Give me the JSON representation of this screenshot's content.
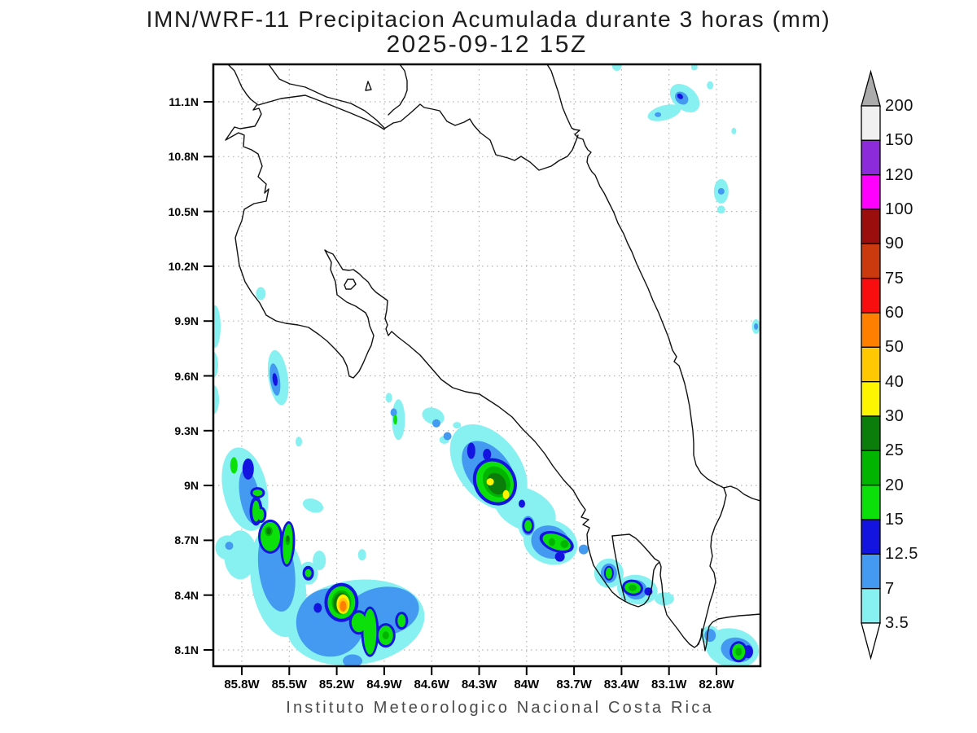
{
  "title": {
    "line1": "IMN/WRF-11 Precipitacion Acumulada durante 3 horas (mm)",
    "line2": "2025-09-12 15Z"
  },
  "caption": "Instituto Meteorologico Nacional Costa Rica",
  "axes": {
    "y_labels": [
      "11.1N",
      "10.8N",
      "10.5N",
      "10.2N",
      "9.9N",
      "9.6N",
      "9.3N",
      "9N",
      "8.7N",
      "8.4N",
      "8.1N"
    ],
    "x_labels": [
      "85.8W",
      "85.5W",
      "85.2W",
      "84.9W",
      "84.6W",
      "84.3W",
      "84W",
      "83.7W",
      "83.4W",
      "83.1W",
      "82.8W"
    ]
  },
  "colorbar": {
    "labels_top_to_bottom": [
      "200",
      "150",
      "120",
      "100",
      "90",
      "75",
      "60",
      "50",
      "40",
      "30",
      "25",
      "20",
      "15",
      "12.5",
      "7",
      "3.5"
    ],
    "over_color": "#ababab",
    "under_color": "#ffffff"
  },
  "palette": {
    "3.5": "#87f0f0",
    "7": "#4499f0",
    "12.5": "#1414e0",
    "15": "#0be00b",
    "20": "#00b400",
    "25": "#0a7d0a",
    "30": "#fdf500",
    "40": "#ffc800",
    "50": "#ff8000",
    "60": "#f80e0e",
    "75": "#cb3a0f",
    "90": "#9a0e0e",
    "100": "#ff00ff",
    "120": "#8c2bd9",
    "150": "#f0f0f0",
    "200": "#ababab"
  },
  "chart_data": {
    "type": "heatmap",
    "title": "IMN/WRF-11 Precipitacion Acumulada durante 3 horas (mm)",
    "subtitle": "2025-09-12 15Z",
    "unit": "mm",
    "extent": {
      "lon_min": -86.0,
      "lon_max": -82.52,
      "lat_min": 8.0,
      "lat_max": 11.29
    },
    "lon_ticks": [
      -85.8,
      -85.5,
      -85.2,
      -84.9,
      -84.6,
      -84.3,
      -84.0,
      -83.7,
      -83.4,
      -83.1,
      -82.8
    ],
    "lat_ticks": [
      11.1,
      10.8,
      10.5,
      10.2,
      9.9,
      9.6,
      9.3,
      9.0,
      8.7,
      8.4,
      8.1
    ],
    "levels_mm": [
      3.5,
      7,
      12.5,
      15,
      20,
      25,
      30,
      40,
      50,
      60,
      75,
      90,
      100,
      120,
      150,
      200
    ],
    "grid": "dotted",
    "legend_position": "right",
    "max_value_band_mm": "50-60",
    "max_value_location": {
      "lon": -85.16,
      "lat": 8.34
    },
    "cells_key": [
      "lon",
      "lat",
      "rx_px",
      "ry_px",
      "rot_deg",
      "mm"
    ],
    "cells": [
      [
        -83.0,
        11.12,
        21,
        14,
        42,
        3.5
      ],
      [
        -83.13,
        11.04,
        21,
        9,
        -15,
        3.5
      ],
      [
        -83.43,
        11.3,
        6,
        7,
        0,
        3.5
      ],
      [
        -82.94,
        11.29,
        4,
        4,
        0,
        3.5
      ],
      [
        -82.84,
        11.19,
        4,
        5,
        0,
        3.5
      ],
      [
        -82.69,
        10.94,
        3,
        4,
        0,
        3.5
      ],
      [
        -82.77,
        10.61,
        9,
        15,
        0,
        3.5
      ],
      [
        -82.77,
        10.51,
        5,
        5,
        0,
        3.5
      ],
      [
        -82.55,
        9.87,
        5,
        9,
        0,
        3.5
      ],
      [
        -85.68,
        10.05,
        6,
        8,
        0,
        3.5
      ],
      [
        -85.57,
        9.59,
        12,
        34,
        -8,
        3.5
      ],
      [
        -85.97,
        9.87,
        7,
        26,
        0,
        3.5
      ],
      [
        -85.98,
        9.66,
        6,
        16,
        0,
        3.5
      ],
      [
        -85.98,
        9.47,
        7,
        18,
        0,
        3.5
      ],
      [
        -85.78,
        8.98,
        27,
        52,
        -12,
        3.5
      ],
      [
        -85.57,
        8.47,
        33,
        68,
        -10,
        3.5
      ],
      [
        -85.81,
        8.62,
        20,
        30,
        0,
        3.5
      ],
      [
        -85.89,
        8.66,
        15,
        15,
        0,
        3.5
      ],
      [
        -85.44,
        9.24,
        4,
        6,
        0,
        3.5
      ],
      [
        -85.35,
        8.89,
        13,
        8,
        20,
        3.5
      ],
      [
        -85.31,
        8.59,
        8,
        12,
        0,
        3.5
      ],
      [
        -85.38,
        8.52,
        12,
        14,
        0,
        3.5
      ],
      [
        -85.08,
        8.25,
        85,
        52,
        -8,
        3.5
      ],
      [
        -85.04,
        8.62,
        5,
        7,
        0,
        3.5
      ],
      [
        -84.87,
        9.48,
        4,
        6,
        0,
        3.5
      ],
      [
        -84.81,
        9.36,
        8,
        25,
        0,
        3.5
      ],
      [
        -84.59,
        9.38,
        14,
        10,
        20,
        3.5
      ],
      [
        -84.52,
        9.25,
        6,
        5,
        0,
        3.5
      ],
      [
        -84.44,
        9.33,
        5,
        4,
        0,
        3.5
      ],
      [
        -84.26,
        9.25,
        5,
        4,
        0,
        3.5
      ],
      [
        -84.24,
        9.1,
        38,
        60,
        -38,
        3.5
      ],
      [
        -84.01,
        8.87,
        40,
        25,
        25,
        3.5
      ],
      [
        -83.99,
        8.78,
        12,
        16,
        0,
        3.5
      ],
      [
        -83.85,
        8.69,
        34,
        27,
        20,
        3.5
      ],
      [
        -83.48,
        8.52,
        18,
        18,
        0,
        3.5
      ],
      [
        -83.3,
        8.43,
        25,
        18,
        10,
        3.5
      ],
      [
        -83.13,
        8.38,
        12,
        8,
        0,
        3.5
      ],
      [
        -82.7,
        8.11,
        33,
        24,
        12,
        3.5
      ],
      [
        -82.84,
        8.18,
        11,
        12,
        0,
        3.5
      ],
      [
        -83.02,
        11.12,
        9,
        7,
        42,
        7
      ],
      [
        -83.17,
        11.03,
        4,
        3,
        0,
        7
      ],
      [
        -82.77,
        10.61,
        4,
        4,
        0,
        7
      ],
      [
        -82.55,
        9.87,
        2.5,
        4,
        0,
        7
      ],
      [
        -85.59,
        9.58,
        6,
        20,
        -8,
        7
      ],
      [
        -85.75,
        8.94,
        12,
        34,
        -10,
        7
      ],
      [
        -85.58,
        8.54,
        22,
        52,
        -8,
        7
      ],
      [
        -85.88,
        8.67,
        5,
        5,
        0,
        7
      ],
      [
        -85.24,
        8.25,
        42,
        42,
        0,
        7
      ],
      [
        -84.91,
        8.31,
        45,
        30,
        -10,
        7
      ],
      [
        -85.1,
        8.04,
        12,
        8,
        0,
        7
      ],
      [
        -84.84,
        9.4,
        4,
        5,
        0,
        7
      ],
      [
        -84.57,
        9.34,
        5,
        5,
        0,
        7
      ],
      [
        -84.5,
        9.27,
        5,
        5,
        0,
        7
      ],
      [
        -84.24,
        9.08,
        26,
        42,
        -38,
        7
      ],
      [
        -83.99,
        8.78,
        8,
        12,
        0,
        7
      ],
      [
        -83.85,
        8.69,
        24,
        20,
        20,
        7
      ],
      [
        -83.64,
        8.65,
        6,
        6,
        0,
        7
      ],
      [
        -83.48,
        8.52,
        10,
        12,
        0,
        7
      ],
      [
        -83.31,
        8.43,
        14,
        12,
        10,
        7
      ],
      [
        -82.67,
        8.1,
        20,
        15,
        12,
        7
      ],
      [
        -82.84,
        8.18,
        7,
        8,
        0,
        7
      ],
      [
        -83.03,
        11.13,
        4,
        3,
        42,
        12.5
      ],
      [
        -85.59,
        9.58,
        3,
        8,
        -8,
        12.5
      ],
      [
        -85.76,
        9.09,
        7,
        13,
        0,
        12.5
      ],
      [
        -85.71,
        8.86,
        8,
        18,
        0,
        12.5
      ],
      [
        -85.7,
        8.96,
        9,
        7,
        0,
        12.5
      ],
      [
        -85.68,
        8.84,
        7,
        10,
        0,
        12.5
      ],
      [
        -85.62,
        8.72,
        15,
        21,
        0,
        12.5
      ],
      [
        -85.51,
        8.68,
        9,
        28,
        3,
        12.5
      ],
      [
        -85.38,
        8.52,
        7,
        9,
        0,
        12.5
      ],
      [
        -85.17,
        8.36,
        21,
        24,
        0,
        12.5
      ],
      [
        -85.32,
        8.33,
        5,
        6,
        0,
        12.5
      ],
      [
        -85.06,
        8.25,
        12,
        15,
        0,
        12.5
      ],
      [
        -84.99,
        8.2,
        11,
        31,
        0,
        12.5
      ],
      [
        -84.89,
        8.18,
        12,
        15,
        0,
        12.5
      ],
      [
        -84.79,
        8.26,
        8,
        11,
        0,
        12.5
      ],
      [
        -84.35,
        9.19,
        5,
        10,
        0,
        12.5
      ],
      [
        -84.25,
        9.17,
        5,
        7,
        0,
        12.5
      ],
      [
        -84.2,
        9.02,
        26,
        30,
        -30,
        12.5
      ],
      [
        -84.03,
        8.9,
        4,
        5,
        0,
        12.5
      ],
      [
        -83.99,
        8.78,
        7,
        10,
        0,
        12.5
      ],
      [
        -83.81,
        8.69,
        22,
        12,
        20,
        12.5
      ],
      [
        -83.79,
        8.61,
        6,
        6,
        0,
        12.5
      ],
      [
        -83.48,
        8.52,
        6,
        9,
        0,
        12.5
      ],
      [
        -83.33,
        8.44,
        13,
        10,
        10,
        12.5
      ],
      [
        -83.23,
        8.42,
        5,
        5,
        0,
        12.5
      ],
      [
        -82.66,
        8.09,
        11,
        13,
        0,
        12.5
      ],
      [
        -82.6,
        8.09,
        6,
        8,
        0,
        12.5
      ],
      [
        -85.85,
        9.11,
        4.5,
        10,
        0,
        15
      ],
      [
        -85.71,
        8.86,
        4.5,
        13,
        0,
        15
      ],
      [
        -85.7,
        8.96,
        6,
        4,
        0,
        15
      ],
      [
        -85.68,
        8.84,
        4,
        7,
        0,
        15
      ],
      [
        -85.62,
        8.72,
        12,
        18,
        0,
        15
      ],
      [
        -85.51,
        8.68,
        6,
        25,
        3,
        15
      ],
      [
        -85.38,
        8.52,
        4,
        5,
        0,
        15
      ],
      [
        -85.17,
        8.36,
        17,
        20,
        0,
        15
      ],
      [
        -85.06,
        8.25,
        9,
        12,
        0,
        15
      ],
      [
        -84.99,
        8.2,
        8,
        28,
        0,
        15
      ],
      [
        -84.89,
        8.18,
        9,
        12,
        0,
        15
      ],
      [
        -84.79,
        8.26,
        5,
        8,
        0,
        15
      ],
      [
        -84.83,
        9.36,
        2.5,
        6,
        0,
        15
      ],
      [
        -84.2,
        9.02,
        22,
        26,
        -30,
        15
      ],
      [
        -83.99,
        8.78,
        4.5,
        7,
        0,
        15
      ],
      [
        -83.81,
        8.69,
        18,
        9,
        20,
        15
      ],
      [
        -83.48,
        8.52,
        4,
        7,
        0,
        15
      ],
      [
        -83.33,
        8.44,
        10,
        7,
        10,
        15
      ],
      [
        -82.66,
        8.09,
        8,
        10,
        0,
        15
      ],
      [
        -85.63,
        8.75,
        5,
        6,
        0,
        20
      ],
      [
        -85.51,
        8.7,
        3,
        6,
        0,
        20
      ],
      [
        -85.17,
        8.36,
        12,
        15,
        0,
        20
      ],
      [
        -84.89,
        8.18,
        4,
        5,
        0,
        20
      ],
      [
        -84.19,
        9.02,
        16,
        20,
        -30,
        20
      ],
      [
        -83.84,
        8.69,
        4,
        5,
        0,
        20
      ],
      [
        -83.76,
        8.68,
        5,
        5,
        0,
        20
      ],
      [
        -83.33,
        8.44,
        5,
        4,
        0,
        20
      ],
      [
        -82.66,
        8.09,
        4,
        5,
        0,
        20
      ],
      [
        -84.19,
        9.01,
        11,
        14,
        -30,
        25
      ],
      [
        -85.17,
        8.355,
        10,
        13,
        0,
        25
      ],
      [
        -85.63,
        8.75,
        3,
        4,
        0,
        25
      ],
      [
        -85.51,
        8.71,
        2,
        4,
        0,
        25
      ],
      [
        -85.16,
        8.35,
        8,
        12,
        0,
        30
      ],
      [
        -84.23,
        9.02,
        4.5,
        4.5,
        0,
        30
      ],
      [
        -84.13,
        8.95,
        4,
        5.5,
        0,
        30
      ],
      [
        -85.16,
        8.345,
        6,
        9,
        0,
        40
      ],
      [
        -85.16,
        8.34,
        4,
        6.5,
        0,
        50
      ]
    ]
  },
  "map_geometry": {
    "stroke_color": "#111111",
    "grid_color": "#b4b4b4",
    "coast_paths": [
      "M 280 79 L 288 87 L 293 98 L 297 107 L 303 116 L 308 122 L 312 125 L 316 128 L 311 135 L 318 133 L 321 140 L 316 150 L 313 155 L 295 158 L 288 156 L 277 172 L 293 163 L 300 166 L 299 180 L 309 184 L 317 189 L 322 204 L 317 217 L 327 226 L 325 237 L 330 232 L 327 247 L 312 250 L 300 257 L 297 271 L 292 283 L 289 292 L 294 326 L 301 346 L 309 359 L 319 372 L 327 387 L 339 394 L 351 397 L 366 399 L 379 402 L 392 411 L 402 419 L 412 429 L 421 439 L 426 449 L 429 462 L 434 464 L 441 456 L 446 446 L 452 432 L 456 424 L 459 412 L 454 400 L 452 390 L 449 384 L 437 376 L 426 371 L 414 362 L 412 346 L 406 331 L 407 322 L 399 307 L 402 309 L 409 312 L 421 331 L 429 332 L 434 331 L 441 336 L 446 341 L 452 346 L 457 354 L 462 359 L 469 364 L 476 369 L 475 381 L 473 391 L 476 399 L 474 404 L 477 412 L 481 407 L 489 414 L 502 424 L 516 436 L 529 451 L 542 466 L 556 476 L 572 481 L 589 484 L 612 499 L 629 512 L 642 527 L 657 542 L 669 557 L 679 572 L 692 589 L 704 602 L 712 616 L 719 626 L 714 635 L 723 638 L 716 644 L 724 648 L 721 656 L 722 669 L 725 681 L 729 694 L 737 706 L 746 719 L 752 727 L 759 733 L 767 738 L 775 742 L 784 745 L 791 742 L 796 736 L 799 728 L 801 718 L 802 708 L 803 700 L 806 694 L 810 690 L 812 696 L 811 706 L 813 718 L 814 731 L 816 744 L 819 755 L 825 763 L 832 772 L 840 783 L 847 791 L 853 795 L 858 791 L 861 782 L 862 772 L 863 782 L 865 792 L 866 799 L 868 790 L 869 778 L 871 769 L 875 764 L 882 760 L 893 758 L 908 756 L 922 755 L 934 754",
      "M 752 658 L 773 656 L 781 661 L 790 670 L 798 679 L 804 686 L 809 689",
      "M 752 658 L 754 672 L 757 688 L 760 704 L 763 718 L 766 730 L 768 737",
      "M 330 79 L 343 97 L 356 103 L 375 107 L 401 119 L 431 127 L 448 136 L 462 147 L 472 157",
      "M 317 129 L 345 121 L 375 117 L 401 127 L 431 139 L 450 147 L 464 154 L 472 159",
      "M 491 79 L 497 87 L 500 99 L 500 111 L 497 119 L 491 129 L 483 135 L 477 141",
      "M 472 158 L 483 151 L 492 149 L 505 138 L 516 128 L 521 132 L 531 134 L 540 136 L 549 149 L 559 154 L 570 150 L 577 146 L 582 154 L 590 163 L 602 172 L 609 190 L 624 194 L 632 197 L 640 192 L 651 199 L 662 209 L 677 204 L 687 197 L 697 192 L 703 184 L 707 174 L 710 166",
      "M 672 79 L 677 87 L 681 99 L 686 114 L 691 132 L 696 144 L 702 157 L 705 159 L 712 160 L 706 165 L 710 169 L 716 171 L 719 179 L 722 184 L 726 187 L 722 192 L 721 199 L 724 206 L 727 211 L 731 215 L 737 229 L 742 237 L 749 251 L 754 261 L 759 274 L 766 287 L 771 299 L 776 309 L 782 324 L 789 339 L 796 354 L 802 369 L 809 384 L 815 399 L 821 414 L 826 430 L 831 438 L 828 444 L 834 449 L 837 458 L 841 471 L 844 484 L 847 499 L 849 514 L 851 529 L 852 544 L 852 559 L 855 571 L 861 581 L 869 588 L 879 594 L 889 599 L 897 597 L 905 600 L 914 607 L 924 612 L 934 615",
      "M 889 599 L 892 608 L 889 621 L 885 633 L 878 647 L 874 659 L 873 671 L 875 683 L 872 695 L 877 703 L 879 714 L 876 727 L 872 739 L 869 751 L 866 763 L 863 775 L 860 786 L 856 793",
      "M 449 111 L 452 100 L 456 110 Z",
      "M 423 350 L 427 343 L 434 343 L 437 349 L 431 355 L 425 355 Z"
    ]
  }
}
